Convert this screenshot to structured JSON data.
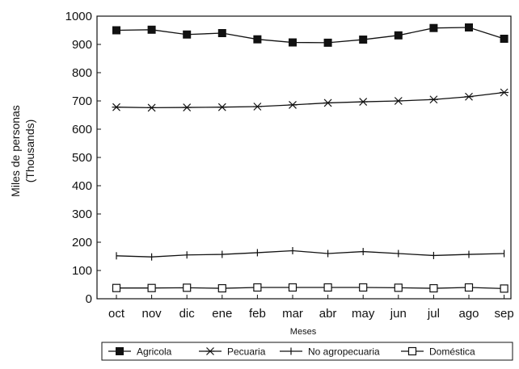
{
  "chart_data": {
    "type": "line",
    "title": "",
    "xlabel": "Meses",
    "ylabel": "Miles de personas",
    "ylabel_sub": "(Thousands)",
    "categories": [
      "oct",
      "nov",
      "dic",
      "ene",
      "feb",
      "mar",
      "abr",
      "may",
      "jun",
      "jul",
      "ago",
      "sep"
    ],
    "ylim": [
      0,
      1000
    ],
    "yticks": [
      0,
      100,
      200,
      300,
      400,
      500,
      600,
      700,
      800,
      900,
      1000
    ],
    "grid": false,
    "legend_position": "bottom",
    "series": [
      {
        "name": "Agricola",
        "marker": "filled-square",
        "values": [
          950,
          952,
          935,
          940,
          918,
          907,
          906,
          917,
          932,
          958,
          960,
          920
        ]
      },
      {
        "name": "Pecuaria",
        "marker": "star",
        "values": [
          678,
          676,
          677,
          678,
          680,
          686,
          693,
          697,
          700,
          705,
          715,
          730
        ]
      },
      {
        "name": "No agropecuaria",
        "marker": "plus",
        "values": [
          152,
          148,
          155,
          157,
          163,
          170,
          160,
          167,
          160,
          153,
          157,
          160
        ]
      },
      {
        "name": "Doméstica",
        "marker": "open-square",
        "values": [
          38,
          38,
          39,
          37,
          40,
          40,
          40,
          40,
          39,
          37,
          40,
          36
        ]
      }
    ]
  },
  "colors": {
    "ink": "#111111",
    "background": "#ffffff"
  }
}
